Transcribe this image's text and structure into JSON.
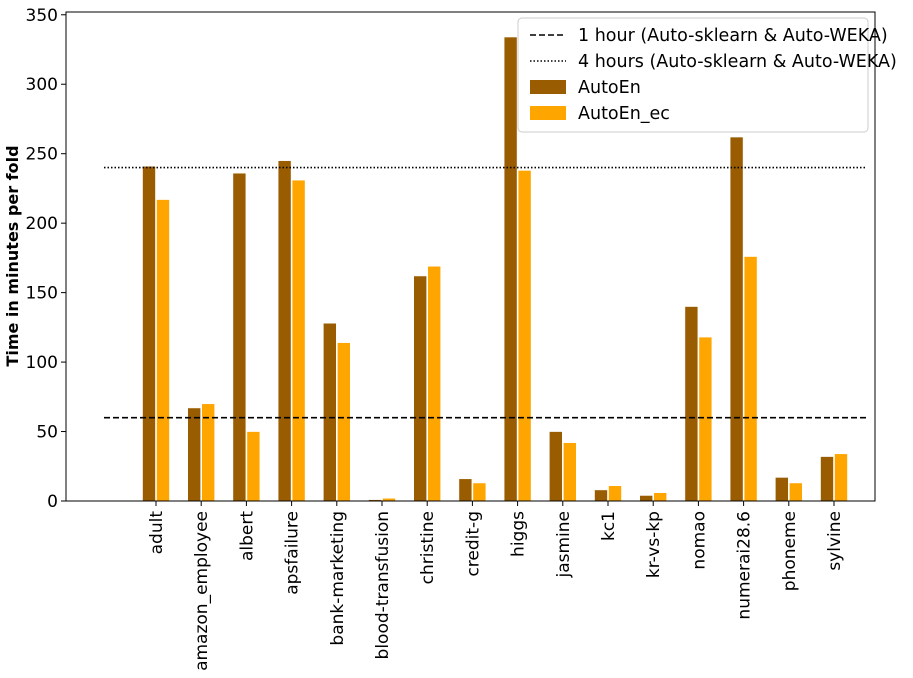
{
  "chart_data": {
    "type": "bar",
    "title": "",
    "xlabel": "",
    "ylabel": "Time in minutes per fold",
    "ylim": [
      0,
      352
    ],
    "yticks": [
      0,
      50,
      100,
      150,
      200,
      250,
      300,
      350
    ],
    "categories": [
      "adult",
      "amazon_employee",
      "albert",
      "apsfailure",
      "bank-marketing",
      "blood-transfusion",
      "christine",
      "credit-g",
      "higgs",
      "jasmine",
      "kc1",
      "kr-vs-kp",
      "nomao",
      "numerai28.6",
      "phoneme",
      "sylvine"
    ],
    "series": [
      {
        "name": "AutoEn",
        "color": "#9a5c00",
        "values": [
          241,
          67,
          236,
          245,
          128,
          1,
          162,
          16,
          334,
          50,
          8,
          4,
          140,
          262,
          17,
          32
        ]
      },
      {
        "name": "AutoEn_ec",
        "color": "#ffa500",
        "values": [
          217,
          70,
          50,
          231,
          114,
          2,
          169,
          13,
          238,
          42,
          11,
          6,
          118,
          176,
          13,
          34
        ]
      }
    ],
    "reference_lines": [
      {
        "name": "1 hour (Auto-sklearn & Auto-WEKA)",
        "value": 60,
        "style": "dashed",
        "color": "#000000"
      },
      {
        "name": "4 hours (Auto-sklearn & Auto-WEKA)",
        "value": 240,
        "style": "dotted",
        "color": "#000000"
      }
    ],
    "legend_position": "top-right",
    "grid": false
  }
}
